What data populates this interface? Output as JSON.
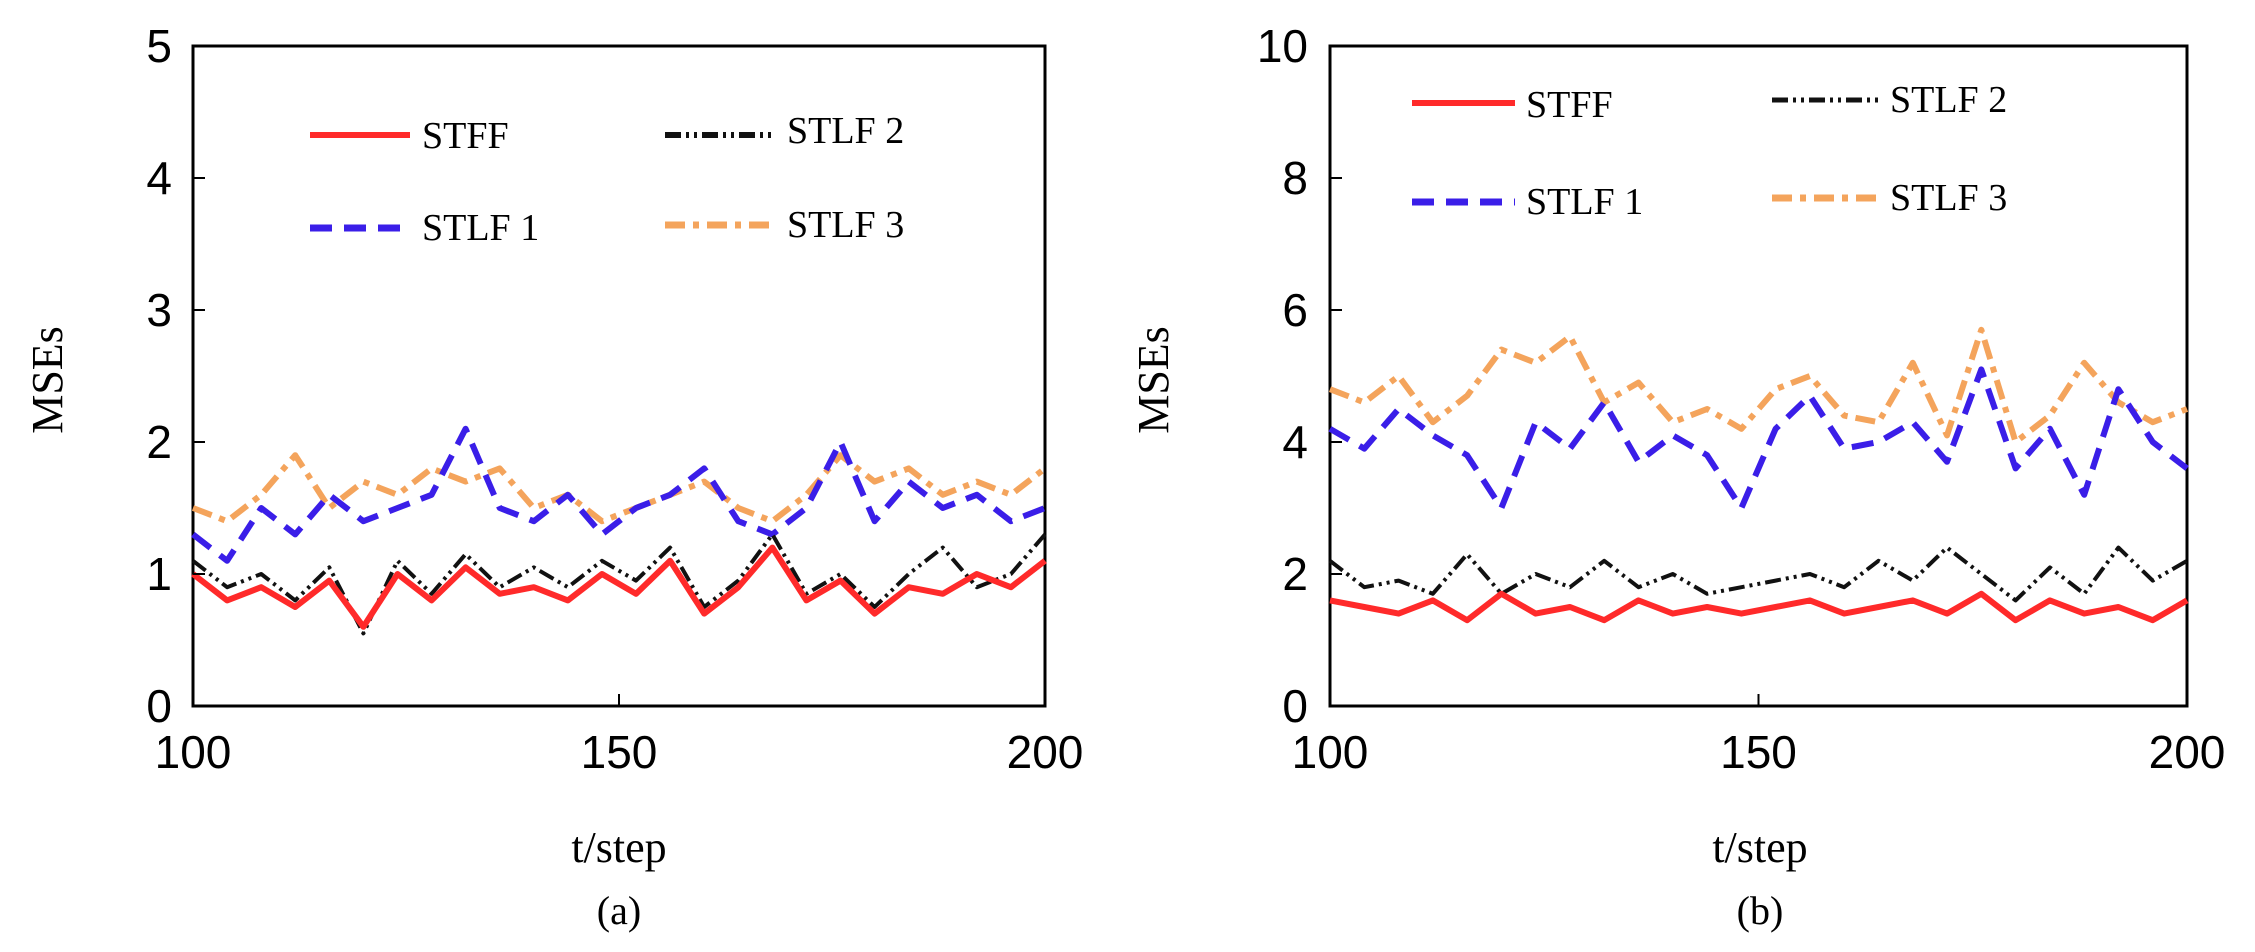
{
  "chart_data": [
    {
      "type": "line",
      "caption": "(a)",
      "xlabel": "t/step",
      "ylabel": "MSEs",
      "xlim": [
        100,
        200
      ],
      "ylim": [
        0,
        5
      ],
      "xticks": [
        "100",
        "150",
        "200"
      ],
      "yticks": [
        "0",
        "1",
        "2",
        "3",
        "4",
        "5"
      ],
      "legend_position": "top",
      "x": [
        100,
        104,
        108,
        112,
        116,
        120,
        124,
        128,
        132,
        136,
        140,
        144,
        148,
        152,
        156,
        160,
        164,
        168,
        172,
        176,
        180,
        184,
        188,
        192,
        196,
        200
      ],
      "series": [
        {
          "name": "STFF",
          "color": "#ff2a2a",
          "style": "solid",
          "values": [
            1.0,
            0.8,
            0.9,
            0.75,
            0.95,
            0.6,
            1.0,
            0.8,
            1.05,
            0.85,
            0.9,
            0.8,
            1.0,
            0.85,
            1.1,
            0.7,
            0.9,
            1.2,
            0.8,
            0.95,
            0.7,
            0.9,
            0.85,
            1.0,
            0.9,
            1.1
          ]
        },
        {
          "name": "STLF 2",
          "color": "#111111",
          "style": "dashdotdot",
          "values": [
            1.1,
            0.9,
            1.0,
            0.8,
            1.05,
            0.55,
            1.1,
            0.85,
            1.15,
            0.9,
            1.05,
            0.9,
            1.1,
            0.95,
            1.2,
            0.75,
            0.95,
            1.3,
            0.85,
            1.0,
            0.75,
            1.0,
            1.2,
            0.9,
            1.0,
            1.3
          ]
        },
        {
          "name": "STLF 1",
          "color": "#3a1ee8",
          "style": "dash",
          "values": [
            1.3,
            1.1,
            1.5,
            1.3,
            1.6,
            1.4,
            1.5,
            1.6,
            2.1,
            1.5,
            1.4,
            1.6,
            1.3,
            1.5,
            1.6,
            1.8,
            1.4,
            1.3,
            1.5,
            2.0,
            1.4,
            1.7,
            1.5,
            1.6,
            1.4,
            1.5
          ]
        },
        {
          "name": "STLF 3",
          "color": "#f4a45c",
          "style": "dashdot",
          "values": [
            1.5,
            1.4,
            1.6,
            1.9,
            1.5,
            1.7,
            1.6,
            1.8,
            1.7,
            1.8,
            1.5,
            1.6,
            1.4,
            1.5,
            1.6,
            1.7,
            1.5,
            1.4,
            1.6,
            1.9,
            1.7,
            1.8,
            1.6,
            1.7,
            1.6,
            1.8
          ]
        }
      ]
    },
    {
      "type": "line",
      "caption": "(b)",
      "xlabel": "t/step",
      "ylabel": "MSEs",
      "xlim": [
        100,
        200
      ],
      "ylim": [
        0,
        10
      ],
      "xticks": [
        "100",
        "150",
        "200"
      ],
      "yticks": [
        "0",
        "2",
        "4",
        "6",
        "8",
        "10"
      ],
      "legend_position": "top",
      "x": [
        100,
        104,
        108,
        112,
        116,
        120,
        124,
        128,
        132,
        136,
        140,
        144,
        148,
        152,
        156,
        160,
        164,
        168,
        172,
        176,
        180,
        184,
        188,
        192,
        196,
        200
      ],
      "series": [
        {
          "name": "STFF",
          "color": "#ff2a2a",
          "style": "solid",
          "values": [
            1.6,
            1.5,
            1.4,
            1.6,
            1.3,
            1.7,
            1.4,
            1.5,
            1.3,
            1.6,
            1.4,
            1.5,
            1.4,
            1.5,
            1.6,
            1.4,
            1.5,
            1.6,
            1.4,
            1.7,
            1.3,
            1.6,
            1.4,
            1.5,
            1.3,
            1.6
          ]
        },
        {
          "name": "STLF 2",
          "color": "#111111",
          "style": "dashdotdot",
          "values": [
            2.2,
            1.8,
            1.9,
            1.7,
            2.3,
            1.7,
            2.0,
            1.8,
            2.2,
            1.8,
            2.0,
            1.7,
            1.8,
            1.9,
            2.0,
            1.8,
            2.2,
            1.9,
            2.4,
            2.0,
            1.6,
            2.1,
            1.7,
            2.4,
            1.9,
            2.2
          ]
        },
        {
          "name": "STLF 1",
          "color": "#3a1ee8",
          "style": "dash",
          "values": [
            4.2,
            3.9,
            4.5,
            4.1,
            3.8,
            3.0,
            4.3,
            3.9,
            4.6,
            3.7,
            4.1,
            3.8,
            3.0,
            4.2,
            4.7,
            3.9,
            4.0,
            4.3,
            3.7,
            5.1,
            3.6,
            4.2,
            3.2,
            4.8,
            4.0,
            3.6
          ]
        },
        {
          "name": "STLF 3",
          "color": "#f4a45c",
          "style": "dashdot",
          "values": [
            4.8,
            4.6,
            5.0,
            4.3,
            4.7,
            5.4,
            5.2,
            5.6,
            4.6,
            4.9,
            4.3,
            4.5,
            4.2,
            4.8,
            5.0,
            4.4,
            4.3,
            5.2,
            4.1,
            5.7,
            4.0,
            4.4,
            5.2,
            4.6,
            4.3,
            4.5
          ]
        }
      ]
    }
  ]
}
